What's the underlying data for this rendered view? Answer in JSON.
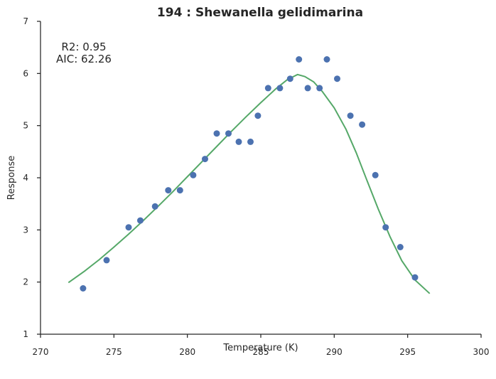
{
  "chart_data": {
    "type": "scatter",
    "title": "194 : Shewanella gelidimarina",
    "xlabel": "Temperature (K)",
    "ylabel": "Response",
    "xlim": [
      270,
      300
    ],
    "ylim": [
      1,
      7
    ],
    "xticks": [
      "270",
      "275",
      "280",
      "285",
      "290",
      "295",
      "300"
    ],
    "yticks": [
      "1",
      "2",
      "3",
      "4",
      "5",
      "6",
      "7"
    ],
    "annotations": [
      "R2: 0.95",
      "AIC: 62.26"
    ],
    "colors": {
      "points": "#4c72b0",
      "fit": "#55a868",
      "axis": "#262626"
    },
    "series": [
      {
        "type": "scatter",
        "points": [
          [
            272.9,
            1.88
          ],
          [
            274.5,
            2.42
          ],
          [
            276.0,
            3.05
          ],
          [
            276.8,
            3.18
          ],
          [
            277.8,
            3.45
          ],
          [
            278.7,
            3.76
          ],
          [
            279.5,
            3.76
          ],
          [
            280.4,
            4.05
          ],
          [
            281.2,
            4.36
          ],
          [
            282.0,
            4.85
          ],
          [
            282.8,
            4.85
          ],
          [
            283.5,
            4.69
          ],
          [
            284.3,
            4.69
          ],
          [
            284.8,
            5.19
          ],
          [
            285.5,
            5.72
          ],
          [
            286.3,
            5.72
          ],
          [
            287.0,
            5.9
          ],
          [
            287.6,
            6.27
          ],
          [
            288.2,
            5.72
          ],
          [
            289.0,
            5.72
          ],
          [
            289.5,
            6.27
          ],
          [
            290.2,
            5.9
          ],
          [
            291.1,
            5.19
          ],
          [
            291.9,
            5.02
          ],
          [
            292.8,
            4.05
          ],
          [
            293.5,
            3.05
          ],
          [
            294.5,
            2.67
          ],
          [
            295.5,
            2.09
          ]
        ]
      },
      {
        "type": "line",
        "points": [
          [
            271.9,
            1.99
          ],
          [
            273.0,
            2.21
          ],
          [
            274.0,
            2.43
          ],
          [
            275.0,
            2.67
          ],
          [
            276.0,
            2.92
          ],
          [
            277.0,
            3.18
          ],
          [
            278.0,
            3.45
          ],
          [
            279.0,
            3.73
          ],
          [
            280.0,
            4.02
          ],
          [
            281.0,
            4.31
          ],
          [
            282.0,
            4.6
          ],
          [
            283.0,
            4.89
          ],
          [
            284.0,
            5.17
          ],
          [
            285.0,
            5.44
          ],
          [
            286.0,
            5.7
          ],
          [
            286.8,
            5.88
          ],
          [
            287.5,
            5.98
          ],
          [
            288.0,
            5.94
          ],
          [
            288.6,
            5.84
          ],
          [
            289.2,
            5.65
          ],
          [
            290.0,
            5.34
          ],
          [
            290.8,
            4.93
          ],
          [
            291.5,
            4.48
          ],
          [
            292.2,
            3.97
          ],
          [
            293.0,
            3.4
          ],
          [
            293.8,
            2.87
          ],
          [
            294.6,
            2.41
          ],
          [
            295.5,
            2.04
          ],
          [
            296.5,
            1.78
          ]
        ]
      }
    ]
  }
}
